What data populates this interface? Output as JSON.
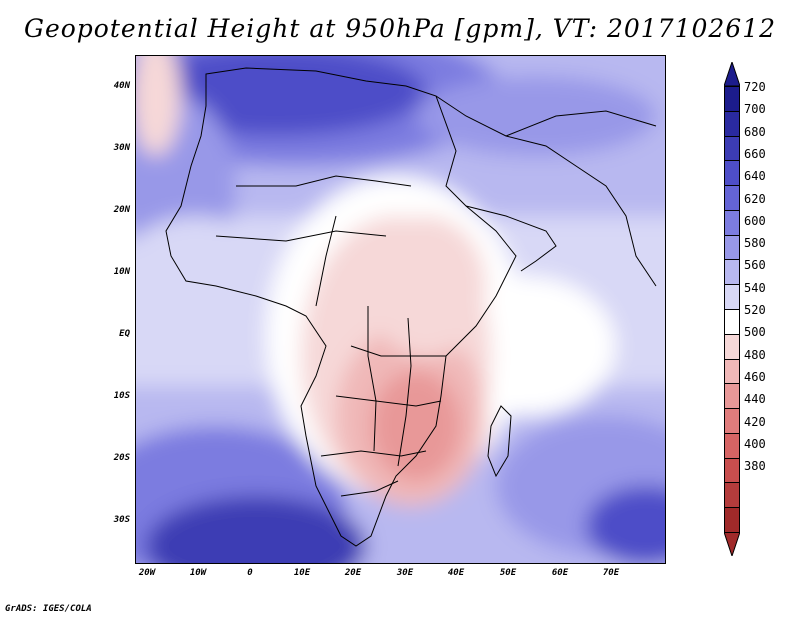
{
  "title": "Geopotential Height at 950hPa [gpm], VT: 2017102612",
  "footer": "GrADS: IGES/COLA",
  "map": {
    "lat_labels": [
      "40N",
      "30N",
      "20N",
      "10N",
      "EQ",
      "10S",
      "20S",
      "30S"
    ],
    "lon_labels": [
      "20W",
      "10W",
      "0",
      "10E",
      "20E",
      "30E",
      "40E",
      "50E",
      "60E",
      "70E"
    ]
  },
  "colorbar": {
    "levels": [
      "720",
      "700",
      "680",
      "660",
      "640",
      "620",
      "600",
      "580",
      "560",
      "540",
      "520",
      "500",
      "480",
      "460",
      "440",
      "420",
      "400",
      "380"
    ],
    "colors": [
      "#1c1c8c",
      "#2a2aa0",
      "#3c3cb4",
      "#4e4ec8",
      "#6464d6",
      "#7c7ce0",
      "#9898e8",
      "#b8b8f0",
      "#d8d8f6",
      "#ffffff",
      "#f6d8d8",
      "#f0b8b8",
      "#e89898",
      "#e07c7c",
      "#d66464",
      "#c84e4e",
      "#b43c3c",
      "#a02a2a"
    ]
  }
}
